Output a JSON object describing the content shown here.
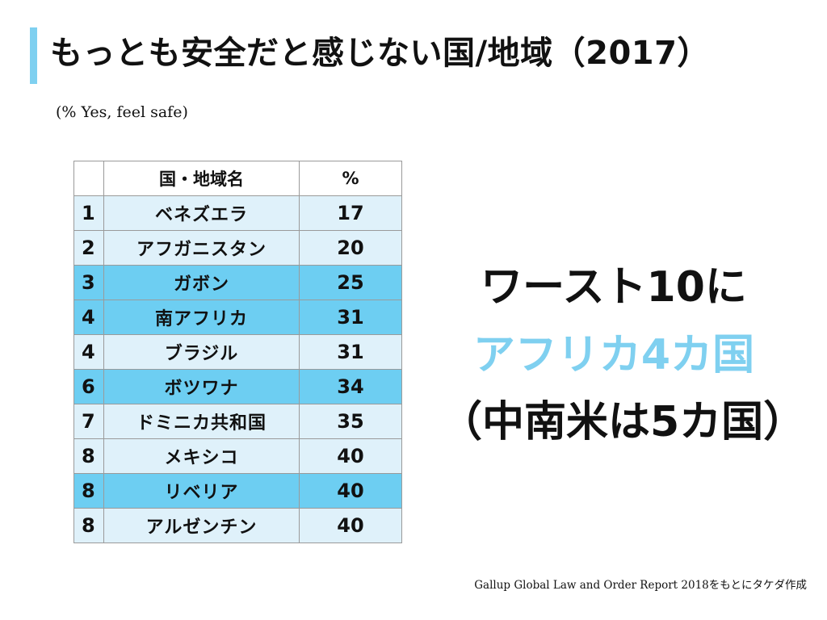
{
  "title": "もっとも安全だと感じない国/地域（2017）",
  "subtitle": "(% Yes, feel safe)",
  "table": {
    "header": {
      "rank": "",
      "name": "国・地域名",
      "percent": "%"
    },
    "rows": [
      {
        "rank": "1",
        "name": "ベネズエラ",
        "percent": "17",
        "highlight": false
      },
      {
        "rank": "2",
        "name": "アフガニスタン",
        "percent": "20",
        "highlight": false
      },
      {
        "rank": "3",
        "name": "ガボン",
        "percent": "25",
        "highlight": true
      },
      {
        "rank": "4",
        "name": "南アフリカ",
        "percent": "31",
        "highlight": true
      },
      {
        "rank": "4",
        "name": "ブラジル",
        "percent": "31",
        "highlight": false
      },
      {
        "rank": "6",
        "name": "ボツワナ",
        "percent": "34",
        "highlight": true
      },
      {
        "rank": "7",
        "name": "ドミニカ共和国",
        "percent": "35",
        "highlight": false
      },
      {
        "rank": "8",
        "name": "メキシコ",
        "percent": "40",
        "highlight": false
      },
      {
        "rank": "8",
        "name": "リベリア",
        "percent": "40",
        "highlight": true
      },
      {
        "rank": "8",
        "name": "アルゼンチン",
        "percent": "40",
        "highlight": false
      }
    ]
  },
  "callout": {
    "line1": "ワースト10に",
    "line2": "アフリカ4カ国",
    "line3": "（中南米は5カ国）"
  },
  "source": "Gallup Global Law and Order Report 2018をもとにタケダ作成",
  "colors": {
    "accent": "#7fd0f0",
    "row_light": "#dff1fa",
    "row_dark": "#6dcef2"
  }
}
